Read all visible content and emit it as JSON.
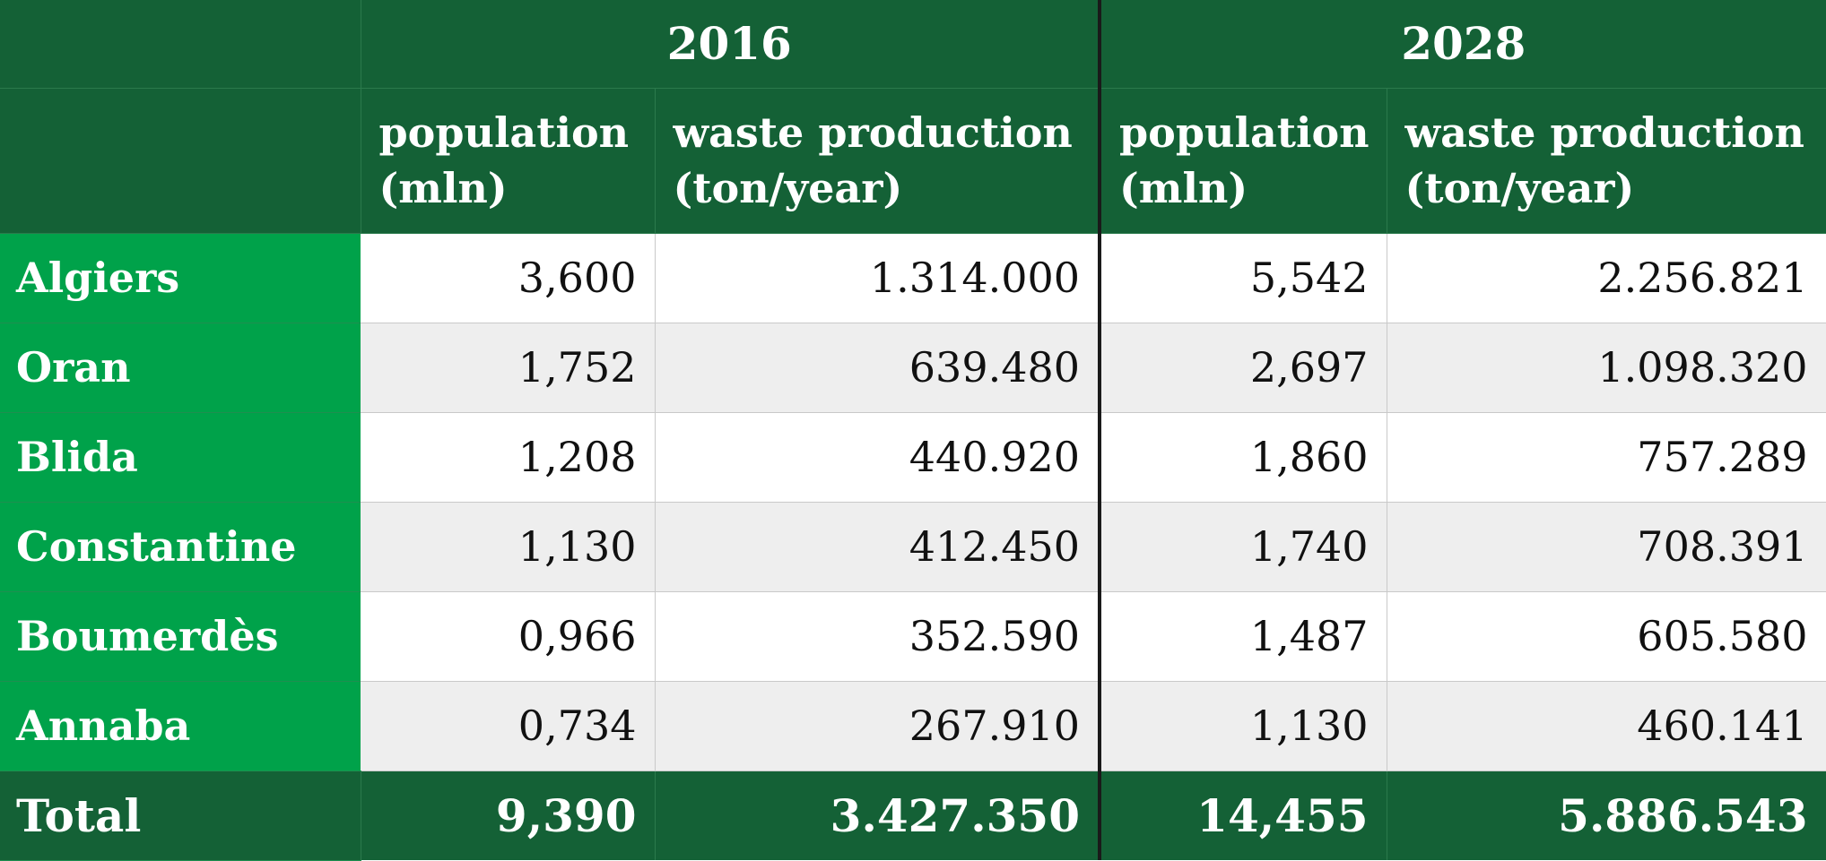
{
  "years": [
    "2016",
    "2028"
  ],
  "subheaders": {
    "population": "population (mln)",
    "waste": "waste production (ton/year)"
  },
  "rows": [
    {
      "city": "Algiers",
      "pop2016": "3,600",
      "waste2016": "1.314.000",
      "pop2028": "5,542",
      "waste2028": "2.256.821"
    },
    {
      "city": "Oran",
      "pop2016": "1,752",
      "waste2016": "639.480",
      "pop2028": "2,697",
      "waste2028": "1.098.320"
    },
    {
      "city": "Blida",
      "pop2016": "1,208",
      "waste2016": "440.920",
      "pop2028": "1,860",
      "waste2028": "757.289"
    },
    {
      "city": "Constantine",
      "pop2016": "1,130",
      "waste2016": "412.450",
      "pop2028": "1,740",
      "waste2028": "708.391"
    },
    {
      "city": "Boumerdès",
      "pop2016": "0,966",
      "waste2016": "352.590",
      "pop2028": "1,487",
      "waste2028": "605.580"
    },
    {
      "city": "Annaba",
      "pop2016": "0,734",
      "waste2016": "267.910",
      "pop2028": "1,130",
      "waste2028": "460.141"
    }
  ],
  "total": {
    "label": "Total",
    "pop2016": "9,390",
    "waste2016": "3.427.350",
    "pop2028": "14,455",
    "waste2028": "5.886.543"
  },
  "colors": {
    "header_dark_green": "#146136",
    "city_green": "#00a24a",
    "row_alt_gray": "#eeeeee"
  }
}
